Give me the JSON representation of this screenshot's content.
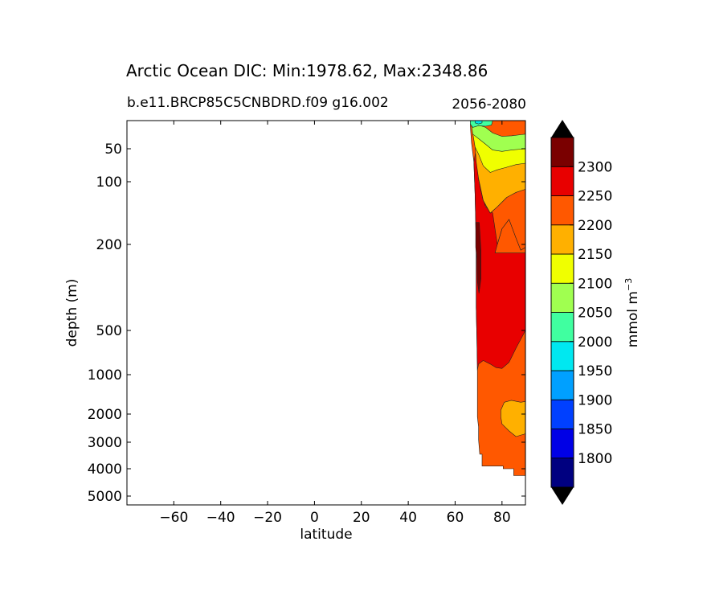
{
  "chart_data": {
    "type": "heatmap",
    "title": "Arctic Ocean DIC: Min:1978.62, Max:2348.86",
    "subtitle_left": "b.e11.BRCP85C5CNBDRD.f09 g16.002",
    "subtitle_right": "2056-2080",
    "xlabel": "latitude",
    "ylabel": "depth (m)",
    "xlim": [
      -80,
      90
    ],
    "ylim": [
      5500,
      0
    ],
    "yscale": "nonlinear",
    "x_ticks": [
      -60,
      -40,
      -20,
      0,
      20,
      40,
      60,
      80
    ],
    "x_tick_labels": [
      "−60",
      "−40",
      "−20",
      "0",
      "20",
      "40",
      "60",
      "80"
    ],
    "y_ticks": [
      50,
      100,
      200,
      500,
      1000,
      2000,
      3000,
      4000,
      5000
    ],
    "y_tick_labels": [
      "50",
      "100",
      "200",
      "500",
      "1000",
      "2000",
      "3000",
      "4000",
      "5000"
    ],
    "colorbar": {
      "label": "mmol m",
      "label_superscript": "−3",
      "levels": [
        1800,
        1850,
        1900,
        1950,
        2000,
        2050,
        2100,
        2150,
        2200,
        2250,
        2300
      ],
      "level_labels": [
        "1800",
        "1850",
        "1900",
        "1950",
        "2000",
        "2050",
        "2100",
        "2150",
        "2200",
        "2250",
        "2300"
      ],
      "colors": [
        "#000080",
        "#0000e6",
        "#0040ff",
        "#00a0ff",
        "#00e8f0",
        "#40ffa0",
        "#a0ff50",
        "#f0ff00",
        "#ffb000",
        "#ff5800",
        "#e80000",
        "#7a0000"
      ],
      "extend": "both",
      "over_color": "#000000",
      "under_color": "#000000"
    },
    "region_colors": {
      "deep_red": "#7a0000",
      "red": "#e80000",
      "orange_red": "#ff5800",
      "orange": "#ffb000",
      "yellow": "#f0ff00",
      "light_green": "#a0ff50",
      "aqua": "#40ffa0",
      "cyan": "#00e8f0"
    },
    "grid": false,
    "legend": "colorbar-right"
  }
}
